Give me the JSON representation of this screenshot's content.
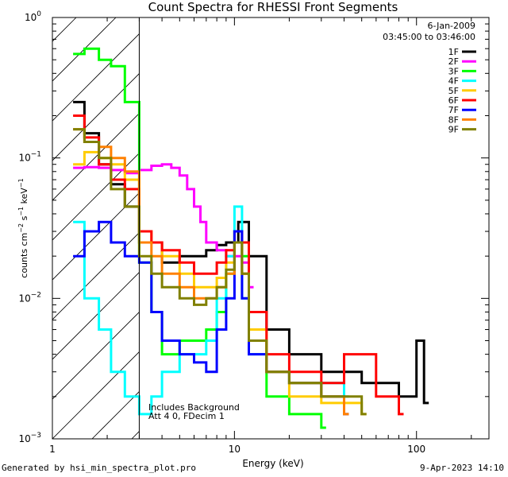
{
  "chart_data": {
    "type": "line",
    "title": "Count Spectra for RHESSI Front Segments",
    "xlabel": "Energy (keV)",
    "ylabel": "counts cm-2 s-1 keV-1",
    "xscale": "log",
    "yscale": "log",
    "xlim": [
      1,
      250
    ],
    "ylim": [
      0.001,
      1
    ],
    "x_ticks": [
      "1",
      "10",
      "100"
    ],
    "y_ticks": [
      "10^-3",
      "10^-2",
      "10^-1",
      "10^0"
    ],
    "date": "6-Jan-2009",
    "time_range": "03:45:00 to 03:46:00",
    "hatched_region_keV": [
      1,
      3
    ],
    "annotations": [
      "Includes Background",
      "Att 4 0, FDecim 1"
    ],
    "legend_position": "top-right",
    "series": [
      {
        "name": "1F",
        "color": "#000000",
        "x": [
          1.3,
          1.5,
          1.8,
          2.1,
          2.5,
          3.0,
          4.0,
          5.0,
          6.0,
          7.0,
          8.0,
          9.0,
          10.5,
          12.0,
          15.0,
          20.0,
          30.0,
          50.0,
          80.0,
          100.0,
          110.0
        ],
        "y": [
          0.25,
          0.15,
          0.09,
          0.065,
          0.045,
          0.025,
          0.018,
          0.02,
          0.02,
          0.022,
          0.024,
          0.025,
          0.035,
          0.02,
          0.006,
          0.004,
          0.003,
          0.0025,
          0.002,
          0.005,
          0.0018
        ]
      },
      {
        "name": "2F",
        "color": "#ff00ff",
        "x": [
          1.3,
          1.5,
          1.8,
          2.1,
          2.5,
          3.0,
          3.5,
          4.0,
          4.5,
          5.0,
          5.5,
          6.0,
          6.5,
          7.0,
          8.0,
          9.0,
          10.0,
          11.0,
          12.0
        ],
        "y": [
          0.085,
          0.086,
          0.085,
          0.082,
          0.078,
          0.082,
          0.088,
          0.09,
          0.085,
          0.075,
          0.06,
          0.045,
          0.035,
          0.025,
          0.022,
          0.02,
          0.02,
          0.018,
          0.012
        ]
      },
      {
        "name": "3F",
        "color": "#00ff00",
        "x": [
          1.3,
          1.5,
          1.8,
          2.1,
          2.5,
          3.0,
          3.5,
          4.0,
          5.0,
          6.0,
          7.0,
          8.0,
          9.0,
          10.0,
          11.0,
          12.0,
          15.0,
          20.0,
          30.0
        ],
        "y": [
          0.55,
          0.6,
          0.5,
          0.45,
          0.25,
          0.018,
          0.008,
          0.004,
          0.005,
          0.005,
          0.006,
          0.008,
          0.015,
          0.03,
          0.02,
          0.005,
          0.002,
          0.0015,
          0.0012
        ]
      },
      {
        "name": "4F",
        "color": "#00ffff",
        "x": [
          1.3,
          1.5,
          1.8,
          2.1,
          2.5,
          3.0,
          3.5,
          4.0,
          5.0,
          6.0,
          7.0,
          8.0,
          9.0,
          10.0,
          11.0,
          12.0,
          15.0,
          20.0,
          40.0
        ],
        "y": [
          0.035,
          0.01,
          0.006,
          0.003,
          0.002,
          0.0015,
          0.002,
          0.003,
          0.004,
          0.004,
          0.005,
          0.01,
          0.02,
          0.045,
          0.01,
          0.004,
          0.003,
          0.0025,
          0.002
        ]
      },
      {
        "name": "5F",
        "color": "#ffcc00",
        "x": [
          1.3,
          1.5,
          1.8,
          2.1,
          2.5,
          3.0,
          3.5,
          4.0,
          5.0,
          6.0,
          7.0,
          8.0,
          9.0,
          10.0,
          11.0,
          12.0,
          15.0,
          20.0,
          30.0,
          50.0
        ],
        "y": [
          0.09,
          0.11,
          0.1,
          0.09,
          0.07,
          0.03,
          0.025,
          0.02,
          0.015,
          0.012,
          0.012,
          0.014,
          0.018,
          0.025,
          0.015,
          0.006,
          0.003,
          0.002,
          0.0018,
          0.0015
        ]
      },
      {
        "name": "6F",
        "color": "#ff0000",
        "x": [
          1.3,
          1.5,
          1.8,
          2.1,
          2.5,
          3.0,
          3.5,
          4.0,
          5.0,
          6.0,
          7.0,
          8.0,
          9.0,
          10.0,
          11.0,
          12.0,
          15.0,
          20.0,
          30.0,
          40.0,
          60.0,
          80.0
        ],
        "y": [
          0.2,
          0.14,
          0.09,
          0.07,
          0.06,
          0.03,
          0.025,
          0.022,
          0.018,
          0.015,
          0.015,
          0.018,
          0.022,
          0.03,
          0.025,
          0.008,
          0.004,
          0.003,
          0.0025,
          0.004,
          0.002,
          0.0015
        ]
      },
      {
        "name": "7F",
        "color": "#0000ff",
        "x": [
          1.3,
          1.5,
          1.8,
          2.1,
          2.5,
          3.0,
          3.5,
          4.0,
          5.0,
          6.0,
          7.0,
          8.0,
          9.0,
          10.0,
          11.0,
          12.0,
          15.0,
          20.0,
          30.0,
          40.0
        ],
        "y": [
          0.02,
          0.03,
          0.035,
          0.025,
          0.02,
          0.018,
          0.008,
          0.005,
          0.004,
          0.0035,
          0.003,
          0.006,
          0.01,
          0.03,
          0.01,
          0.004,
          0.003,
          0.0025,
          0.002,
          0.0015
        ]
      },
      {
        "name": "8F",
        "color": "#ff8000",
        "x": [
          1.3,
          1.5,
          1.8,
          2.1,
          2.5,
          3.0,
          3.5,
          4.0,
          5.0,
          6.0,
          7.0,
          8.0,
          9.0,
          10.0,
          11.0,
          12.0,
          15.0,
          20.0,
          30.0,
          40.0
        ],
        "y": [
          0.16,
          0.13,
          0.12,
          0.1,
          0.08,
          0.025,
          0.02,
          0.015,
          0.012,
          0.01,
          0.01,
          0.012,
          0.015,
          0.025,
          0.015,
          0.005,
          0.003,
          0.0025,
          0.002,
          0.0015
        ]
      },
      {
        "name": "9F",
        "color": "#808000",
        "x": [
          1.3,
          1.5,
          1.8,
          2.1,
          2.5,
          3.0,
          3.5,
          4.0,
          5.0,
          6.0,
          7.0,
          8.0,
          9.0,
          10.0,
          11.0,
          12.0,
          15.0,
          20.0,
          30.0,
          50.0
        ],
        "y": [
          0.16,
          0.13,
          0.1,
          0.06,
          0.045,
          0.02,
          0.015,
          0.012,
          0.01,
          0.009,
          0.01,
          0.012,
          0.016,
          0.025,
          0.015,
          0.005,
          0.003,
          0.0025,
          0.002,
          0.0015
        ]
      }
    ]
  },
  "footer": {
    "generated_by": "Generated by hsi_min_spectra_plot.pro",
    "timestamp": "9-Apr-2023 14:10"
  }
}
